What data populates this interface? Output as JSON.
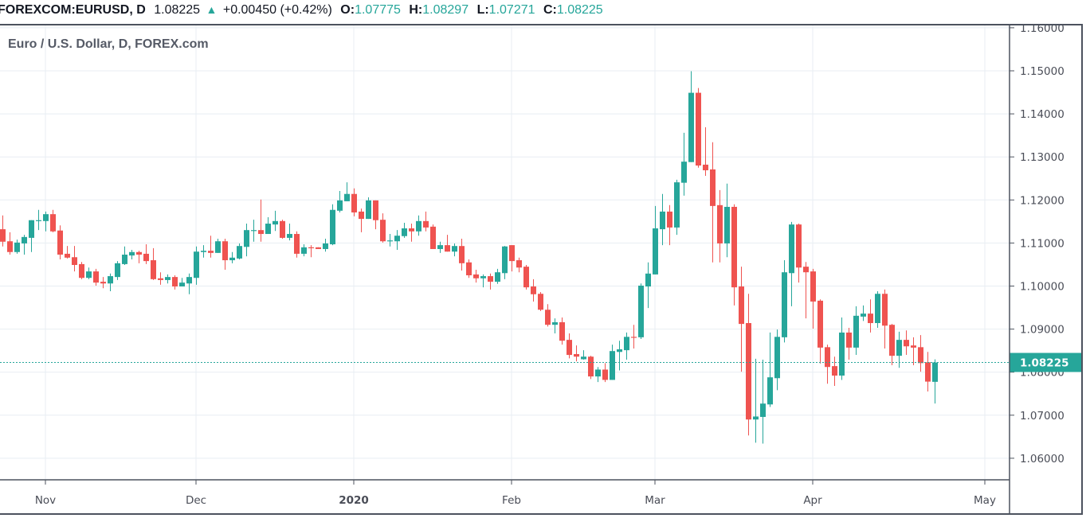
{
  "header": {
    "symbol": "FOREXCOM:EURUSD, D",
    "last": "1.08225",
    "change": "+0.00450 (+0.42%)",
    "open_label": "O:",
    "open": "1.07775",
    "high_label": "H:",
    "high": "1.08297",
    "low_label": "L:",
    "low": "1.07271",
    "close_label": "C:",
    "close": "1.08225",
    "change_icon": "triangle-up-icon"
  },
  "chart_title": "Euro / U.S. Dollar, D, FOREX.com",
  "colors": {
    "up": "#26a69a",
    "down": "#ef5350",
    "grid": "#e8eef3",
    "axis_text": "#4a4d57"
  },
  "chart_data": {
    "type": "candlestick",
    "title": "Euro / U.S. Dollar, D, FOREX.com",
    "ylim": [
      1.0555,
      1.1608
    ],
    "y_ticks": [
      "1.06000",
      "1.07000",
      "1.08000",
      "1.09000",
      "1.10000",
      "1.11000",
      "1.12000",
      "1.13000",
      "1.14000",
      "1.15000",
      "1.16000"
    ],
    "x_ticks": [
      {
        "label": "Nov",
        "bar": 6,
        "bold": false
      },
      {
        "label": "Dec",
        "bar": 27,
        "bold": false
      },
      {
        "label": "2020",
        "bar": 49,
        "bold": true
      },
      {
        "label": "Feb",
        "bar": 71,
        "bold": false
      },
      {
        "label": "Mar",
        "bar": 91,
        "bold": false
      },
      {
        "label": "Apr",
        "bar": 113,
        "bold": false
      },
      {
        "label": "May",
        "bar": 137,
        "bold": false
      }
    ],
    "last_price": "1.08225",
    "grid": true,
    "ohlc": [
      [
        1.1132,
        1.1164,
        1.1092,
        1.1103
      ],
      [
        1.1104,
        1.1125,
        1.1073,
        1.1079
      ],
      [
        1.1079,
        1.1108,
        1.1075,
        1.1101
      ],
      [
        1.1099,
        1.1119,
        1.1073,
        1.1114
      ],
      [
        1.1112,
        1.1153,
        1.1079,
        1.1153
      ],
      [
        1.1151,
        1.1177,
        1.113,
        1.1153
      ],
      [
        1.1151,
        1.1173,
        1.1127,
        1.1167
      ],
      [
        1.1167,
        1.1177,
        1.1125,
        1.1127
      ],
      [
        1.1129,
        1.1141,
        1.1062,
        1.1073
      ],
      [
        1.1075,
        1.1093,
        1.1064,
        1.1066
      ],
      [
        1.1067,
        1.1093,
        1.1034,
        1.1049
      ],
      [
        1.1051,
        1.1056,
        1.1016,
        1.1019
      ],
      [
        1.1019,
        1.1043,
        1.1016,
        1.1034
      ],
      [
        1.1034,
        1.104,
        1.1001,
        1.1008
      ],
      [
        1.101,
        1.1021,
        1.0995,
        1.1006
      ],
      [
        1.1006,
        1.1029,
        1.0988,
        1.1023
      ],
      [
        1.1021,
        1.1058,
        1.1014,
        1.1053
      ],
      [
        1.1051,
        1.1092,
        1.1049,
        1.1073
      ],
      [
        1.1071,
        1.1084,
        1.1062,
        1.1079
      ],
      [
        1.1079,
        1.1082,
        1.1053,
        1.1073
      ],
      [
        1.1075,
        1.1097,
        1.1051,
        1.1058
      ],
      [
        1.106,
        1.1088,
        1.1014,
        1.1016
      ],
      [
        1.1018,
        1.1032,
        1.1003,
        1.1014
      ],
      [
        1.1014,
        1.1027,
        1.1006,
        1.1021
      ],
      [
        1.1021,
        1.1025,
        1.0992,
        1.0999
      ],
      [
        1.0999,
        1.1019,
        1.0999,
        1.1008
      ],
      [
        1.1006,
        1.1029,
        1.0981,
        1.1021
      ],
      [
        1.1019,
        1.1092,
        1.1003,
        1.108
      ],
      [
        1.1079,
        1.1095,
        1.1066,
        1.1082
      ],
      [
        1.1082,
        1.1117,
        1.1066,
        1.1077
      ],
      [
        1.1077,
        1.111,
        1.1077,
        1.1104
      ],
      [
        1.1104,
        1.111,
        1.1038,
        1.106
      ],
      [
        1.106,
        1.1079,
        1.1053,
        1.1066
      ],
      [
        1.1064,
        1.1099,
        1.1062,
        1.1093
      ],
      [
        1.1091,
        1.1145,
        1.1069,
        1.113
      ],
      [
        1.1128,
        1.1154,
        1.1103,
        1.113
      ],
      [
        1.113,
        1.1201,
        1.1103,
        1.1121
      ],
      [
        1.1121,
        1.116,
        1.1121,
        1.1145
      ],
      [
        1.1143,
        1.1175,
        1.1128,
        1.1151
      ],
      [
        1.1151,
        1.1154,
        1.111,
        1.1112
      ],
      [
        1.1112,
        1.1145,
        1.1106,
        1.1121
      ],
      [
        1.1121,
        1.1127,
        1.1066,
        1.1075
      ],
      [
        1.1075,
        1.1097,
        1.1069,
        1.109
      ],
      [
        1.109,
        1.1095,
        1.1067,
        1.1088
      ],
      [
        1.109,
        1.109,
        1.1086,
        1.1086
      ],
      [
        1.1086,
        1.111,
        1.108,
        1.1099
      ],
      [
        1.1097,
        1.119,
        1.1095,
        1.1177
      ],
      [
        1.1175,
        1.1221,
        1.1171,
        1.1199
      ],
      [
        1.1197,
        1.1241,
        1.1197,
        1.1214
      ],
      [
        1.1214,
        1.1227,
        1.1162,
        1.1171
      ],
      [
        1.1173,
        1.118,
        1.1125,
        1.1156
      ],
      [
        1.1156,
        1.1206,
        1.1156,
        1.1199
      ],
      [
        1.1199,
        1.1199,
        1.1132,
        1.1153
      ],
      [
        1.1154,
        1.1169,
        1.1101,
        1.1104
      ],
      [
        1.1104,
        1.1121,
        1.1092,
        1.1106
      ],
      [
        1.1104,
        1.113,
        1.1084,
        1.1117
      ],
      [
        1.1116,
        1.1147,
        1.1112,
        1.1134
      ],
      [
        1.1134,
        1.1145,
        1.1103,
        1.1127
      ],
      [
        1.1127,
        1.1164,
        1.1117,
        1.1151
      ],
      [
        1.1151,
        1.1173,
        1.1127,
        1.1136
      ],
      [
        1.1138,
        1.1143,
        1.1086,
        1.1086
      ],
      [
        1.1086,
        1.1103,
        1.1077,
        1.1095
      ],
      [
        1.1095,
        1.1119,
        1.108,
        1.108
      ],
      [
        1.108,
        1.1099,
        1.1069,
        1.1093
      ],
      [
        1.1093,
        1.111,
        1.1036,
        1.1053
      ],
      [
        1.1055,
        1.1062,
        1.1019,
        1.1025
      ],
      [
        1.1027,
        1.1038,
        1.1008,
        1.1018
      ],
      [
        1.1018,
        1.1027,
        1.0997,
        1.1023
      ],
      [
        1.1023,
        1.1029,
        1.0992,
        1.101
      ],
      [
        1.101,
        1.104,
        1.1005,
        1.1032
      ],
      [
        1.103,
        1.1093,
        1.1016,
        1.1092
      ],
      [
        1.1095,
        1.1095,
        1.1034,
        1.1058
      ],
      [
        1.106,
        1.1066,
        1.1032,
        1.1043
      ],
      [
        1.1045,
        1.1049,
        1.0992,
        1.0997
      ],
      [
        1.0999,
        1.1016,
        1.0964,
        1.0981
      ],
      [
        1.0982,
        1.0986,
        1.0942,
        1.0945
      ],
      [
        1.0945,
        1.0958,
        1.0906,
        1.091
      ],
      [
        1.091,
        1.0925,
        1.089,
        1.0916
      ],
      [
        1.0916,
        1.0927,
        1.0864,
        1.0873
      ],
      [
        1.0875,
        1.089,
        1.0832,
        1.084
      ],
      [
        1.0842,
        1.0862,
        1.0825,
        1.0836
      ],
      [
        1.083,
        1.0851,
        1.0829,
        1.0836
      ],
      [
        1.0836,
        1.0838,
        1.0784,
        1.079
      ],
      [
        1.079,
        1.0812,
        1.0777,
        1.0806
      ],
      [
        1.0806,
        1.0821,
        1.0777,
        1.0782
      ],
      [
        1.0782,
        1.0864,
        1.0782,
        1.0849
      ],
      [
        1.0847,
        1.0873,
        1.0804,
        1.0853
      ],
      [
        1.0851,
        1.0892,
        1.0829,
        1.0882
      ],
      [
        1.0882,
        1.091,
        1.0855,
        1.0881
      ],
      [
        1.0881,
        1.1006,
        1.0877,
        1.1001
      ],
      [
        1.0999,
        1.1055,
        1.0949,
        1.1029
      ],
      [
        1.1027,
        1.1186,
        1.1027,
        1.1134
      ],
      [
        1.1132,
        1.1214,
        1.1095,
        1.1173
      ],
      [
        1.1173,
        1.1188,
        1.1095,
        1.1136
      ],
      [
        1.1136,
        1.1247,
        1.1119,
        1.1241
      ],
      [
        1.124,
        1.1356,
        1.121,
        1.1289
      ],
      [
        1.1288,
        1.1499,
        1.1288,
        1.1449
      ],
      [
        1.1449,
        1.146,
        1.1275,
        1.128
      ],
      [
        1.1282,
        1.1369,
        1.1256,
        1.1269
      ],
      [
        1.1271,
        1.1334,
        1.1055,
        1.1186
      ],
      [
        1.1188,
        1.1223,
        1.1055,
        1.1099
      ],
      [
        1.1099,
        1.1238,
        1.1067,
        1.1184
      ],
      [
        1.1184,
        1.119,
        1.0955,
        1.0997
      ],
      [
        1.0999,
        1.1045,
        1.0801,
        1.0912
      ],
      [
        1.0914,
        1.0982,
        1.0653,
        1.069
      ],
      [
        1.069,
        1.0831,
        1.0636,
        1.0697
      ],
      [
        1.0696,
        1.0829,
        1.0634,
        1.0727
      ],
      [
        1.0725,
        1.0892,
        1.0719,
        1.0788
      ],
      [
        1.0786,
        1.0899,
        1.0758,
        1.0882
      ],
      [
        1.0881,
        1.106,
        1.0869,
        1.1032
      ],
      [
        1.103,
        1.1149,
        1.0953,
        1.1143
      ],
      [
        1.1143,
        1.1145,
        1.1008,
        1.1043
      ],
      [
        1.1045,
        1.1056,
        1.0925,
        1.1032
      ],
      [
        1.1034,
        1.104,
        1.0901,
        1.0964
      ],
      [
        1.0966,
        1.0969,
        1.082,
        1.0857
      ],
      [
        1.0858,
        1.0864,
        1.0773,
        1.0812
      ],
      [
        1.0814,
        1.0836,
        1.0768,
        1.0792
      ],
      [
        1.0792,
        1.0927,
        1.0782,
        1.0892
      ],
      [
        1.0892,
        1.0903,
        1.0829,
        1.0857
      ],
      [
        1.0857,
        1.0953,
        1.084,
        1.0931
      ],
      [
        1.0929,
        1.0955,
        1.0919,
        1.0936
      ],
      [
        1.0936,
        1.0969,
        1.0892,
        1.0914
      ],
      [
        1.0914,
        1.0988,
        1.0903,
        1.0982
      ],
      [
        1.0982,
        1.0992,
        1.0855,
        1.0908
      ],
      [
        1.091,
        1.0912,
        1.0816,
        1.0838
      ],
      [
        1.0838,
        1.0894,
        1.081,
        1.0875
      ],
      [
        1.0875,
        1.0897,
        1.084,
        1.086
      ],
      [
        1.0862,
        1.0881,
        1.0816,
        1.0857
      ],
      [
        1.0858,
        1.0886,
        1.0801,
        1.0821
      ],
      [
        1.0823,
        1.0847,
        1.0755,
        1.0778
      ],
      [
        1.07775,
        1.08297,
        1.07271,
        1.08225
      ]
    ]
  }
}
